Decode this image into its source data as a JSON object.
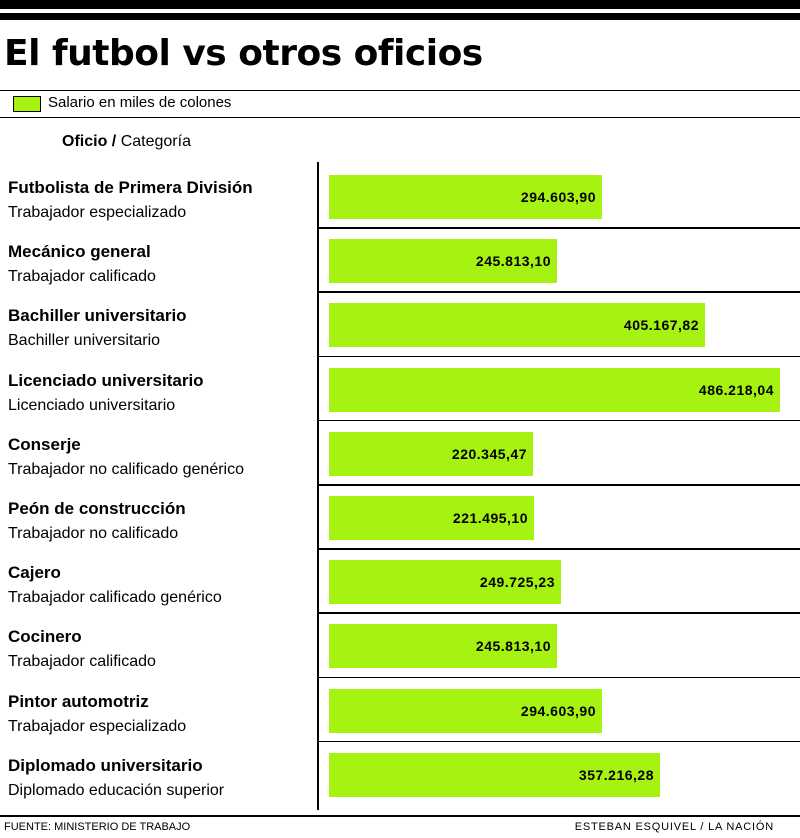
{
  "title": "El futbol vs otros oficios",
  "legend": {
    "label": "Salario en miles de colones",
    "color": "#a6f210"
  },
  "column_header": {
    "main": "Oficio",
    "separator": "/",
    "sub": "Categoría"
  },
  "footer": {
    "source": "FUENTE: MINISTERIO DE TRABAJO",
    "credit": "ESTEBAN ESQUIVEL / LA NACIÓN"
  },
  "chart_data": {
    "type": "bar",
    "orientation": "horizontal",
    "title": "El futbol vs otros oficios",
    "series": [
      {
        "name": "Salario en miles de colones",
        "color": "#a6f210"
      }
    ],
    "categories": [
      "Futbolista de Primera División",
      "Mecánico general",
      "Bachiller universitario",
      "Licenciado universitario",
      "Conserje",
      "Peón de construcción",
      "Cajero",
      "Cocinero",
      "Pintor automotriz",
      "Diplomado universitario"
    ],
    "subcategories": [
      "Trabajador especializado",
      "Trabajador calificado",
      "Bachiller universitario",
      "Licenciado universitario",
      "Trabajador no calificado genérico",
      "Trabajador no calificado",
      "Trabajador calificado genérico",
      "Trabajador calificado",
      "Trabajador especializado",
      "Diplomado educación superior"
    ],
    "values": [
      294603.9,
      245813.1,
      405167.82,
      486218.04,
      220345.47,
      221495.1,
      249725.23,
      245813.1,
      294603.9,
      357216.28
    ],
    "value_labels": [
      "294.603,90",
      "245.813,10",
      "405.167,82",
      "486.218,04",
      "220.345,47",
      "221.495,10",
      "249.725,23",
      "245.813,10",
      "294.603,90",
      "357.216,28"
    ],
    "xlim": [
      0,
      486218.04
    ]
  }
}
